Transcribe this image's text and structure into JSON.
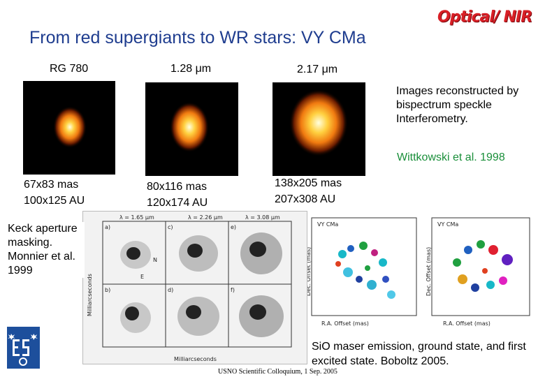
{
  "slide": {
    "title": "From red supergiants to WR stars: VY CMa",
    "badge": "Optical/ NIR",
    "bands": [
      "RG 780",
      "1.28 μm",
      "2.17 μm"
    ],
    "description": "Images reconstructed by bispectrum speckle Interferometry.",
    "citation": "Wittkowski et al. 1998",
    "sizes": [
      {
        "mas": "67x83 mas",
        "au": "100x125 AU"
      },
      {
        "mas": "80x116 mas",
        "au": "120x174 AU"
      },
      {
        "mas": "138x205 mas",
        "au": "207x308 AU"
      }
    ],
    "keck": "Keck aperture masking. Monnier et al. 1999",
    "maser_caption": "SiO maser emission, ground state, and first excited state. Boboltz 2005.",
    "footer": "USNO Scientific Colloquium, 1 Sep. 2005"
  },
  "contour_figure": {
    "lambda_labels": [
      "λ = 1.65 μm",
      "λ = 2.26 μm",
      "λ = 3.08 μm"
    ],
    "panel_labels": [
      "a)",
      "c)",
      "e)",
      "b)",
      "d)",
      "f)"
    ],
    "axis_label": "Milliarcseconds",
    "compass": [
      "N",
      "E"
    ]
  },
  "maser_figure": {
    "panel_title": "VY CMa",
    "xlabel": "R.A. Offset (mas)",
    "ylabel": "Dec. Offset (mas)"
  },
  "colors": {
    "title": "#1f3d8f",
    "badge": "#d81f26",
    "citation": "#1a8f3a",
    "eso_logo": "#1d4f9c"
  }
}
